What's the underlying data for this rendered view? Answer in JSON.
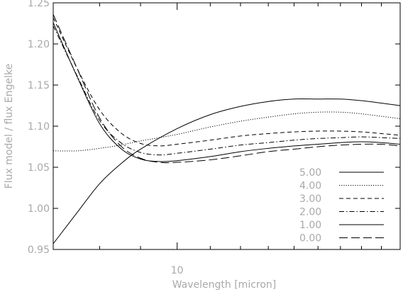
{
  "chart_data": {
    "type": "line",
    "title": "",
    "xlabel": "Wavelength [micron]",
    "ylabel": "Flux model / flux Engelke",
    "xscale": "log",
    "xlim": [
      7.0,
      19.0
    ],
    "ylim": [
      0.95,
      1.25
    ],
    "xticks": [
      {
        "value": 10,
        "label": "10"
      }
    ],
    "yticks": [
      {
        "value": 0.95,
        "label": "0.95"
      },
      {
        "value": 1.0,
        "label": "1.00"
      },
      {
        "value": 1.05,
        "label": "1.05"
      },
      {
        "value": 1.1,
        "label": "1.10"
      },
      {
        "value": 1.15,
        "label": "1.15"
      },
      {
        "value": 1.2,
        "label": "1.20"
      },
      {
        "value": 1.25,
        "label": "1.25"
      }
    ],
    "grid": false,
    "legend_position": "bottom-right",
    "series": [
      {
        "name": "5.00",
        "linestyle": "solid",
        "x": [
          7.0,
          7.5,
          8.0,
          8.5,
          9.0,
          10.0,
          11.0,
          12.0,
          13.0,
          14.0,
          15.0,
          16.0,
          17.0,
          18.0,
          19.0
        ],
        "y": [
          0.957,
          0.995,
          1.03,
          1.054,
          1.072,
          1.097,
          1.114,
          1.124,
          1.13,
          1.133,
          1.133,
          1.133,
          1.131,
          1.128,
          1.125
        ]
      },
      {
        "name": "4.00",
        "linestyle": "dotted",
        "x": [
          7.0,
          7.5,
          8.0,
          8.5,
          9.0,
          10.0,
          11.0,
          12.0,
          13.0,
          14.0,
          15.0,
          16.0,
          17.0,
          18.0,
          19.0
        ],
        "y": [
          1.07,
          1.07,
          1.073,
          1.077,
          1.082,
          1.09,
          1.099,
          1.106,
          1.111,
          1.115,
          1.117,
          1.117,
          1.115,
          1.112,
          1.109
        ]
      },
      {
        "name": "3.00",
        "linestyle": "dashed",
        "x": [
          7.0,
          7.5,
          8.0,
          8.5,
          9.0,
          9.5,
          10.0,
          11.0,
          12.0,
          13.0,
          14.0,
          15.0,
          16.0,
          17.0,
          18.0,
          19.0
        ],
        "y": [
          1.232,
          1.17,
          1.12,
          1.092,
          1.079,
          1.076,
          1.078,
          1.083,
          1.088,
          1.091,
          1.093,
          1.094,
          1.094,
          1.093,
          1.091,
          1.089
        ]
      },
      {
        "name": "2.00",
        "linestyle": "dash-dot",
        "x": [
          7.0,
          7.5,
          8.0,
          8.5,
          9.0,
          9.5,
          10.0,
          11.0,
          12.0,
          13.0,
          14.0,
          15.0,
          16.0,
          17.0,
          18.0,
          19.0
        ],
        "y": [
          1.222,
          1.161,
          1.107,
          1.08,
          1.068,
          1.065,
          1.067,
          1.072,
          1.077,
          1.08,
          1.083,
          1.085,
          1.086,
          1.087,
          1.086,
          1.085
        ]
      },
      {
        "name": "1.00",
        "linestyle": "solid",
        "x": [
          7.0,
          7.5,
          8.0,
          8.5,
          9.0,
          9.5,
          10.0,
          11.0,
          12.0,
          13.0,
          14.0,
          15.0,
          16.0,
          17.0,
          18.0,
          19.0
        ],
        "y": [
          1.226,
          1.16,
          1.103,
          1.073,
          1.06,
          1.057,
          1.058,
          1.063,
          1.069,
          1.073,
          1.076,
          1.078,
          1.08,
          1.081,
          1.08,
          1.078
        ]
      },
      {
        "name": "0.00",
        "linestyle": "long-dash",
        "x": [
          7.0,
          7.5,
          8.0,
          8.5,
          9.0,
          9.5,
          10.0,
          11.0,
          12.0,
          13.0,
          14.0,
          15.0,
          16.0,
          17.0,
          18.0,
          19.0
        ],
        "y": [
          1.236,
          1.17,
          1.11,
          1.076,
          1.061,
          1.056,
          1.056,
          1.059,
          1.064,
          1.069,
          1.072,
          1.075,
          1.077,
          1.078,
          1.078,
          1.076
        ]
      }
    ]
  }
}
